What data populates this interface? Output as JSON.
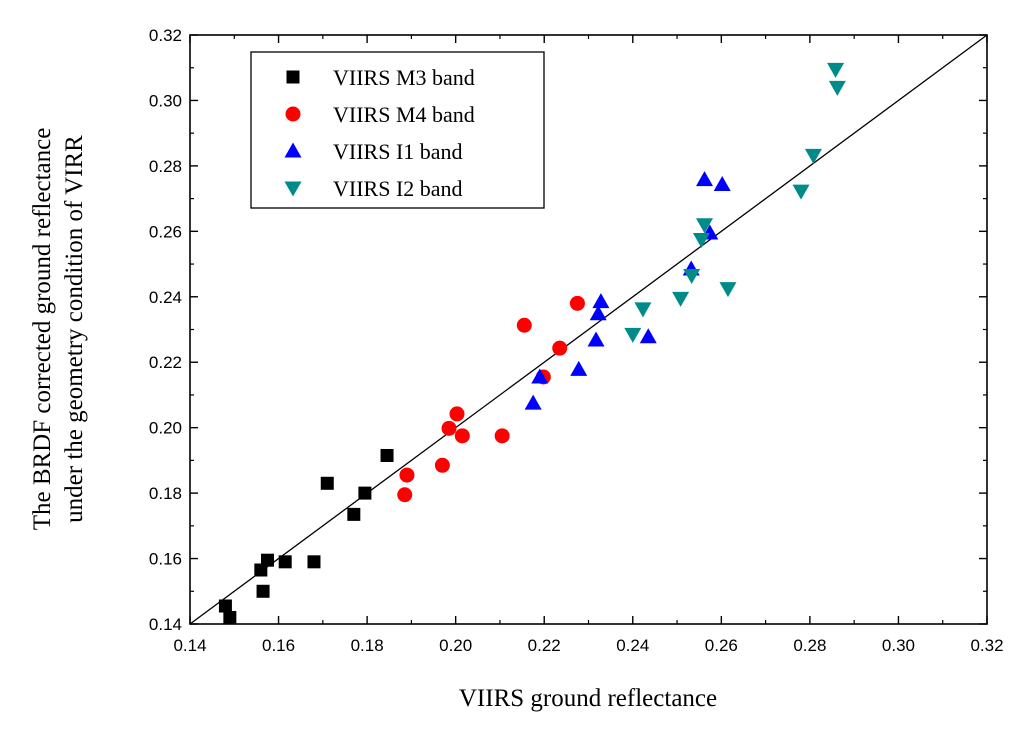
{
  "chart_data": {
    "type": "scatter",
    "xlabel": "VIIRS ground reflectance",
    "ylabel_lines": [
      "The BRDF corrected ground reflectance",
      "under the geometry condition of VIRR"
    ],
    "xlim": [
      0.14,
      0.32
    ],
    "ylim": [
      0.14,
      0.32
    ],
    "x_ticks": [
      "0.14",
      "0.16",
      "0.18",
      "0.20",
      "0.22",
      "0.24",
      "0.26",
      "0.28",
      "0.30",
      "0.32"
    ],
    "y_ticks": [
      "0.14",
      "0.16",
      "0.18",
      "0.20",
      "0.22",
      "0.24",
      "0.26",
      "0.28",
      "0.30",
      "0.32"
    ],
    "reference_line": {
      "from": [
        0.14,
        0.14
      ],
      "to": [
        0.32,
        0.32
      ]
    },
    "legend_position": "top-left",
    "series": [
      {
        "name": "VIIRS M3 band",
        "marker": "square",
        "color": "#000000",
        "points": [
          [
            0.148,
            0.1455
          ],
          [
            0.149,
            0.142
          ],
          [
            0.1565,
            0.15
          ],
          [
            0.156,
            0.1565
          ],
          [
            0.1575,
            0.1595
          ],
          [
            0.1615,
            0.159
          ],
          [
            0.168,
            0.159
          ],
          [
            0.171,
            0.183
          ],
          [
            0.177,
            0.1735
          ],
          [
            0.1795,
            0.18
          ],
          [
            0.1845,
            0.1915
          ]
        ]
      },
      {
        "name": "VIIRS M4 band",
        "marker": "circle",
        "color": "#ff0000",
        "points": [
          [
            0.1885,
            0.1795
          ],
          [
            0.189,
            0.1855
          ],
          [
            0.197,
            0.1885
          ],
          [
            0.1985,
            0.1998
          ],
          [
            0.2003,
            0.2042
          ],
          [
            0.2015,
            0.1975
          ],
          [
            0.2105,
            0.1975
          ],
          [
            0.2155,
            0.2313
          ],
          [
            0.2198,
            0.2155
          ],
          [
            0.2235,
            0.2243
          ],
          [
            0.2275,
            0.238
          ]
        ]
      },
      {
        "name": "VIIRS I1 band",
        "marker": "triangle-up",
        "color": "#0000ff",
        "points": [
          [
            0.2175,
            0.2075
          ],
          [
            0.219,
            0.2155
          ],
          [
            0.2278,
            0.2178
          ],
          [
            0.2317,
            0.2268
          ],
          [
            0.2322,
            0.2348
          ],
          [
            0.2328,
            0.2385
          ],
          [
            0.2435,
            0.2278
          ],
          [
            0.2532,
            0.2485
          ],
          [
            0.2562,
            0.2758
          ],
          [
            0.2574,
            0.2595
          ],
          [
            0.2602,
            0.2743
          ]
        ]
      },
      {
        "name": "VIIRS I2 band",
        "marker": "triangle-down",
        "color": "#008b8b",
        "points": [
          [
            0.24,
            0.2285
          ],
          [
            0.2423,
            0.2363
          ],
          [
            0.2508,
            0.2395
          ],
          [
            0.2533,
            0.2465
          ],
          [
            0.2555,
            0.2575
          ],
          [
            0.2562,
            0.262
          ],
          [
            0.2615,
            0.2425
          ],
          [
            0.278,
            0.2723
          ],
          [
            0.2808,
            0.2832
          ],
          [
            0.2862,
            0.304
          ],
          [
            0.2858,
            0.3095
          ]
        ]
      }
    ]
  }
}
